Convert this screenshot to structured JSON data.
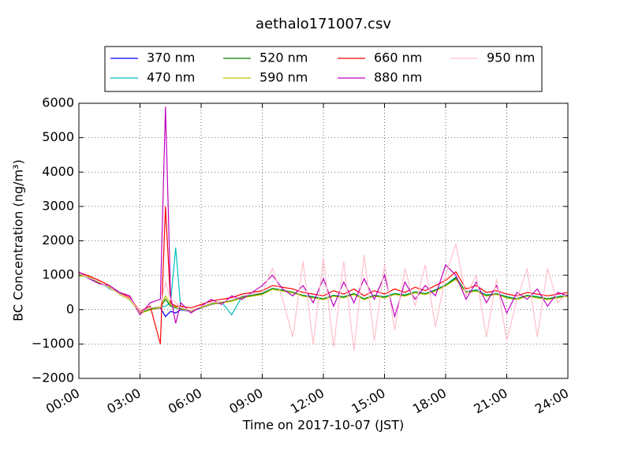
{
  "chart_data": {
    "type": "line",
    "title": "aethalo171007.csv",
    "x_label": "Time on 2017-10-07 (JST)",
    "y_label": "BC Concentration (ng/m³)",
    "x": [
      0,
      0.5,
      1,
      1.5,
      2,
      2.5,
      3,
      3.5,
      4,
      4.25,
      4.5,
      4.75,
      5,
      5.5,
      6,
      6.5,
      7,
      7.5,
      8,
      8.5,
      9,
      9.5,
      10,
      10.5,
      11,
      11.5,
      12,
      12.5,
      13,
      13.5,
      14,
      14.5,
      15,
      15.5,
      16,
      16.5,
      17,
      17.5,
      18,
      18.5,
      19,
      19.5,
      20,
      20.5,
      21,
      21.5,
      22,
      22.5,
      23,
      23.5,
      24
    ],
    "xlim": [
      0,
      24
    ],
    "xticks": [
      {
        "value": 0,
        "label": "00:00"
      },
      {
        "value": 3,
        "label": "03:00"
      },
      {
        "value": 6,
        "label": "06:00"
      },
      {
        "value": 9,
        "label": "09:00"
      },
      {
        "value": 12,
        "label": "12:00"
      },
      {
        "value": 15,
        "label": "15:00"
      },
      {
        "value": 18,
        "label": "18:00"
      },
      {
        "value": 21,
        "label": "21:00"
      },
      {
        "value": 24,
        "label": "24:00"
      }
    ],
    "ylim": [
      -2000,
      6000
    ],
    "yticks": [
      {
        "value": -2000,
        "label": "−2000"
      },
      {
        "value": -1000,
        "label": "−1000"
      },
      0,
      1000,
      2000,
      3000,
      4000,
      5000,
      6000
    ],
    "grid": true,
    "legend": "top",
    "series": [
      {
        "name": "370 nm",
        "color": "#0000ff",
        "values": [
          1000,
          950,
          800,
          650,
          450,
          300,
          -100,
          0,
          50,
          -200,
          -50,
          -100,
          0,
          -50,
          50,
          150,
          200,
          250,
          350,
          400,
          450,
          600,
          550,
          500,
          400,
          350,
          300,
          400,
          350,
          450,
          300,
          400,
          350,
          450,
          400,
          500,
          450,
          550,
          700,
          900,
          500,
          550,
          400,
          450,
          350,
          300,
          400,
          350,
          300,
          350,
          400
        ]
      },
      {
        "name": "470 nm",
        "color": "#00bfbf",
        "values": [
          1050,
          900,
          820,
          600,
          480,
          280,
          -80,
          20,
          80,
          100,
          200,
          1800,
          50,
          -30,
          80,
          180,
          220,
          -150,
          380,
          420,
          480,
          620,
          570,
          480,
          420,
          380,
          320,
          420,
          380,
          470,
          320,
          420,
          380,
          470,
          430,
          520,
          470,
          580,
          720,
          950,
          520,
          580,
          430,
          470,
          380,
          320,
          420,
          380,
          320,
          380,
          420
        ]
      },
      {
        "name": "520 nm",
        "color": "#008000",
        "values": [
          1020,
          930,
          780,
          640,
          470,
          310,
          -90,
          10,
          70,
          300,
          100,
          50,
          30,
          -20,
          70,
          170,
          210,
          260,
          360,
          410,
          470,
          610,
          560,
          510,
          410,
          360,
          310,
          410,
          360,
          460,
          310,
          410,
          360,
          460,
          410,
          510,
          460,
          560,
          710,
          920,
          510,
          560,
          410,
          460,
          360,
          310,
          410,
          360,
          310,
          360,
          410
        ]
      },
      {
        "name": "590 nm",
        "color": "#bfbf00",
        "values": [
          980,
          960,
          790,
          660,
          440,
          290,
          -110,
          -10,
          60,
          400,
          150,
          80,
          20,
          -40,
          60,
          160,
          190,
          240,
          340,
          390,
          440,
          590,
          540,
          490,
          390,
          340,
          290,
          390,
          340,
          440,
          290,
          390,
          340,
          440,
          390,
          490,
          440,
          540,
          690,
          880,
          490,
          540,
          390,
          440,
          340,
          290,
          390,
          340,
          290,
          340,
          390
        ]
      },
      {
        "name": "660 nm",
        "color": "#ff0000",
        "values": [
          1080,
          980,
          850,
          700,
          500,
          350,
          -50,
          100,
          -1000,
          3000,
          200,
          100,
          100,
          50,
          150,
          250,
          300,
          350,
          450,
          500,
          550,
          700,
          650,
          600,
          500,
          450,
          400,
          550,
          450,
          600,
          400,
          550,
          450,
          600,
          500,
          650,
          550,
          700,
          850,
          1100,
          600,
          700,
          500,
          550,
          450,
          400,
          500,
          450,
          400,
          450,
          500
        ]
      },
      {
        "name": "880 nm",
        "color": "#bf00bf",
        "values": [
          1100,
          900,
          750,
          700,
          500,
          400,
          -150,
          200,
          300,
          5900,
          400,
          -400,
          200,
          -100,
          100,
          300,
          150,
          400,
          300,
          500,
          700,
          1000,
          600,
          400,
          700,
          200,
          900,
          100,
          800,
          200,
          900,
          300,
          1000,
          -200,
          800,
          300,
          700,
          400,
          1300,
          1000,
          300,
          800,
          200,
          700,
          -100,
          500,
          300,
          600,
          100,
          500,
          400
        ]
      },
      {
        "name": "950 nm",
        "color": "#ffc0cb",
        "values": [
          1050,
          920,
          820,
          620,
          460,
          320,
          -70,
          50,
          90,
          800,
          300,
          200,
          60,
          -20,
          90,
          200,
          230,
          280,
          400,
          450,
          500,
          1200,
          300,
          -800,
          1400,
          -1000,
          1500,
          -1100,
          1400,
          -1200,
          1600,
          -900,
          1300,
          -600,
          1200,
          100,
          1300,
          -500,
          1000,
          1900,
          400,
          1000,
          -800,
          900,
          -900,
          300,
          1200,
          -800,
          1200,
          200,
          500
        ]
      }
    ]
  }
}
